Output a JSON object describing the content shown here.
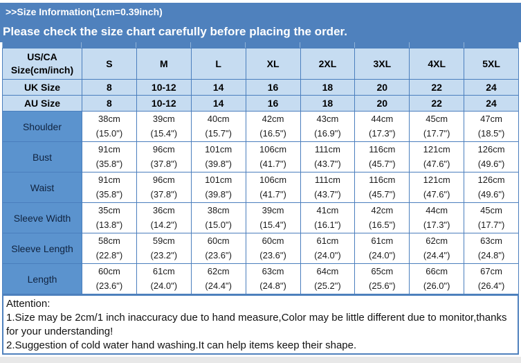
{
  "header": {
    "title": ">>Size Information(1cm=0.39inch)",
    "subtitle": "Please check the size chart carefully before placing the order."
  },
  "colors": {
    "banner_blue": "#4f81bd",
    "header_light_blue": "#c6dcf1",
    "label_blue": "#5b93ce",
    "border_blue": "#4a7ebd"
  },
  "size_table": {
    "corner_label": "US/CA\nSize(cm/inch)",
    "size_columns": [
      "S",
      "M",
      "L",
      "XL",
      "2XL",
      "3XL",
      "4XL",
      "5XL"
    ],
    "uk_size": {
      "label": "UK Size",
      "values": [
        "8",
        "10-12",
        "14",
        "16",
        "18",
        "20",
        "22",
        "24"
      ]
    },
    "au_size": {
      "label": "AU Size",
      "values": [
        "8",
        "10-12",
        "14",
        "16",
        "18",
        "20",
        "22",
        "24"
      ]
    },
    "measurements": [
      {
        "label": "Shoulder",
        "cm": [
          "38cm",
          "39cm",
          "40cm",
          "42cm",
          "43cm",
          "44cm",
          "45cm",
          "47cm"
        ],
        "inch": [
          "(15.0\")",
          "(15.4\")",
          "(15.7\")",
          "(16.5\")",
          "(16.9\")",
          "(17.3\")",
          "(17.7\")",
          "(18.5\")"
        ]
      },
      {
        "label": "Bust",
        "cm": [
          "91cm",
          "96cm",
          "101cm",
          "106cm",
          "111cm",
          "116cm",
          "121cm",
          "126cm"
        ],
        "inch": [
          "(35.8\")",
          "(37.8\")",
          "(39.8\")",
          "(41.7\")",
          "(43.7\")",
          "(45.7\")",
          "(47.6\")",
          "(49.6\")"
        ]
      },
      {
        "label": "Waist",
        "cm": [
          "91cm",
          "96cm",
          "101cm",
          "106cm",
          "111cm",
          "116cm",
          "121cm",
          "126cm"
        ],
        "inch": [
          "(35.8\")",
          "(37.8\")",
          "(39.8\")",
          "(41.7\")",
          "(43.7\")",
          "(45.7\")",
          "(47.6\")",
          "(49.6\")"
        ]
      },
      {
        "label": "Sleeve Width",
        "cm": [
          "35cm",
          "36cm",
          "38cm",
          "39cm",
          "41cm",
          "42cm",
          "44cm",
          "45cm"
        ],
        "inch": [
          "(13.8\")",
          "(14.2\")",
          "(15.0\")",
          "(15.4\")",
          "(16.1\")",
          "(16.5\")",
          "(17.3\")",
          "(17.7\")"
        ]
      },
      {
        "label": "Sleeve Length",
        "cm": [
          "58cm",
          "59cm",
          "60cm",
          "60cm",
          "61cm",
          "61cm",
          "62cm",
          "63cm"
        ],
        "inch": [
          "(22.8\")",
          "(23.2\")",
          "(23.6\")",
          "(23.6\")",
          "(24.0\")",
          "(24.0\")",
          "(24.4\")",
          "(24.8\")"
        ]
      },
      {
        "label": "Length",
        "cm": [
          "60cm",
          "61cm",
          "62cm",
          "63cm",
          "64cm",
          "65cm",
          "66cm",
          "67cm"
        ],
        "inch": [
          "(23.6\")",
          "(24.0\")",
          "(24.4\")",
          "(24.8\")",
          "(25.2\")",
          "(25.6\")",
          "(26.0\")",
          "(26.4\")"
        ]
      }
    ]
  },
  "attention": {
    "title": "Attention:",
    "note1": "1.Size may be 2cm/1 inch inaccuracy due to hand measure,Color may be little different due to monitor,thanks for your understanding!",
    "note2": "2.Suggestion of cold water hand washing.It can help items keep their shape."
  }
}
